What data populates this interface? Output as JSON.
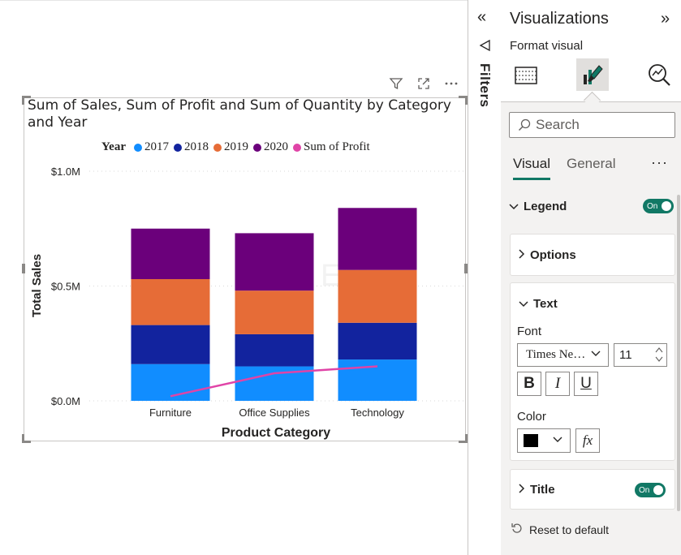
{
  "chart": {
    "title": "Sum of Sales, Sum of Profit and Sum of Quantity by Category and Year",
    "legend_title": "Year",
    "xlabel": "Product Category",
    "ylabel": "Total Sales",
    "watermark": "Ent"
  },
  "chart_data": {
    "type": "bar",
    "stacked": true,
    "categories": [
      "Furniture",
      "Office Supplies",
      "Technology"
    ],
    "y_ticks": [
      "$0.0M",
      "$0.5M",
      "$1.0M"
    ],
    "ylim": [
      0,
      1.0
    ],
    "series": [
      {
        "name": "2017",
        "color": "#118DFF",
        "values": [
          0.16,
          0.15,
          0.18
        ]
      },
      {
        "name": "2018",
        "color": "#12239E",
        "values": [
          0.17,
          0.14,
          0.16
        ]
      },
      {
        "name": "2019",
        "color": "#E66C37",
        "values": [
          0.2,
          0.19,
          0.23
        ]
      },
      {
        "name": "2020",
        "color": "#6B007B",
        "values": [
          0.22,
          0.25,
          0.27
        ]
      }
    ],
    "line_series": {
      "name": "Sum of Profit",
      "color": "#E044A7",
      "values": [
        0.02,
        0.12,
        0.15
      ]
    },
    "grid": true,
    "legend_position": "top"
  },
  "filters": {
    "label": "Filters"
  },
  "panel": {
    "title": "Visualizations",
    "subtitle": "Format visual",
    "search_placeholder": "Search",
    "tabs": [
      "Visual",
      "General"
    ],
    "tabs_more": "···",
    "legend_label": "Legend",
    "legend_toggle": "On",
    "options_label": "Options",
    "text_label": "Text",
    "font_label": "Font",
    "font_value": "Times Ne…",
    "font_size": "11",
    "bold_label": "B",
    "italic_label": "I",
    "underline_label": "U",
    "color_label": "Color",
    "color_value": "#000000",
    "fx_label": "fx",
    "title_label": "Title",
    "title_toggle": "On",
    "reset_label": "Reset to default"
  }
}
